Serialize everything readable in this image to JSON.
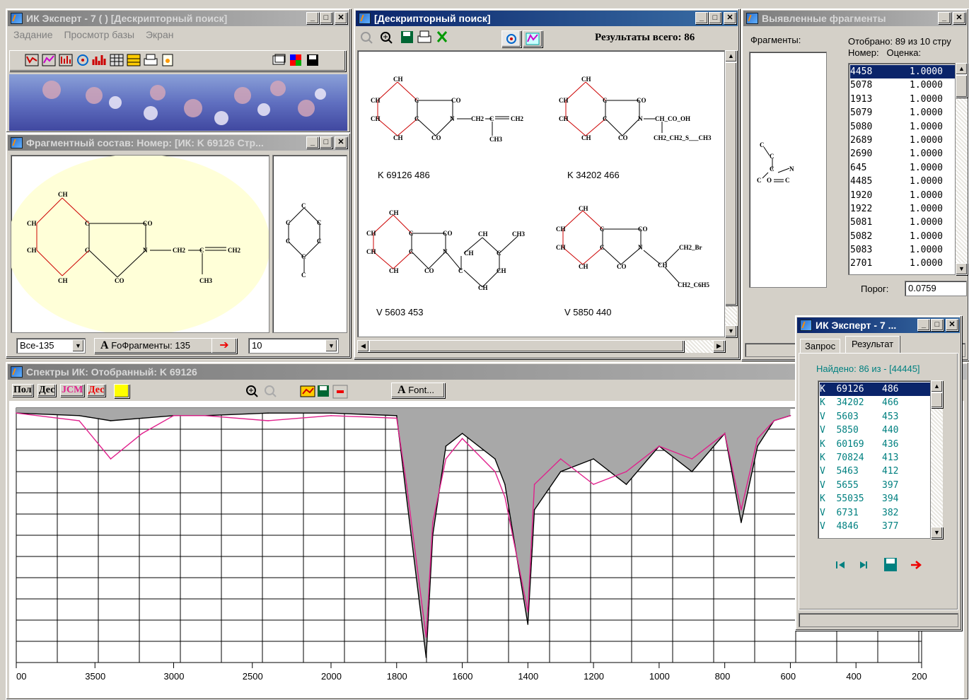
{
  "main_window": {
    "title": "ИК Эксперт - 7 ( ) [Дескрипторный поиск]",
    "menu": [
      "Задание",
      "Просмотр базы",
      "Экран"
    ]
  },
  "fragment_window": {
    "title": "Фрагментный состав: Номер: [ИК:  K 69126 Стр...",
    "combo_all": "Все-135",
    "font_button": "Fo",
    "fragments_label": "Фрагменты: 135",
    "count_combo": "10"
  },
  "descriptor_window": {
    "title": "[Дескрипторный поиск]",
    "results_total": "Результаты всего: 86",
    "structures": [
      {
        "label": "K 69126  486"
      },
      {
        "label": "K 34202  466"
      },
      {
        "label": "V 5603   453"
      },
      {
        "label": "V 5850   440"
      }
    ]
  },
  "fragments_window": {
    "title": "Выявленные фрагменты",
    "fragments_label": "Фрагменты:",
    "selected_info": "Отобрано: 89  из 10 стру",
    "columns": "Номер:   Оценка:",
    "rows": [
      {
        "num": "4458",
        "score": "1.0000"
      },
      {
        "num": "5078",
        "score": "1.0000"
      },
      {
        "num": "1913",
        "score": "1.0000"
      },
      {
        "num": "5079",
        "score": "1.0000"
      },
      {
        "num": "5080",
        "score": "1.0000"
      },
      {
        "num": "2689",
        "score": "1.0000"
      },
      {
        "num": "2690",
        "score": "1.0000"
      },
      {
        "num": "645",
        "score": "1.0000"
      },
      {
        "num": "4485",
        "score": "1.0000"
      },
      {
        "num": "1920",
        "score": "1.0000"
      },
      {
        "num": "1922",
        "score": "1.0000"
      },
      {
        "num": "5081",
        "score": "1.0000"
      },
      {
        "num": "5082",
        "score": "1.0000"
      },
      {
        "num": "5083",
        "score": "1.0000"
      },
      {
        "num": "2701",
        "score": "1.0000"
      }
    ],
    "threshold_label": "Порог:",
    "threshold_value": "0.0759"
  },
  "spectra_window": {
    "title": "Спектры ИК: Отобранный: K   69126",
    "toolbar": [
      "Пол",
      "Дес",
      "JCM",
      "Дес"
    ],
    "font_button": "Font...",
    "series_colors": {
      "selected": "#000000",
      "reference": "#e0208c",
      "fill": "#a8a8a8"
    }
  },
  "chart_data": {
    "type": "line",
    "title": "",
    "xlabel": "",
    "ylabel": "",
    "xlim": [
      4000,
      200
    ],
    "x_ticks": [
      "00",
      "3500",
      "3000",
      "2500",
      "2000",
      "1800",
      "1600",
      "1400",
      "1200",
      "1000",
      "800",
      "600",
      "400",
      "200"
    ],
    "grid": true,
    "series": [
      {
        "name": "",
        "x": [
          4000,
          3600,
          3400,
          3200,
          3000,
          2800,
          2400,
          2000,
          1800,
          1770,
          1710,
          1690,
          1650,
          1600,
          1500,
          1470,
          1400,
          1380,
          1300,
          1200,
          1100,
          1000,
          900,
          800,
          750,
          700,
          650,
          600
        ],
        "y": [
          0.02,
          0.03,
          0.05,
          0.04,
          0.03,
          0.03,
          0.02,
          0.02,
          0.03,
          0.35,
          0.98,
          0.5,
          0.15,
          0.1,
          0.2,
          0.3,
          0.85,
          0.4,
          0.25,
          0.2,
          0.3,
          0.15,
          0.25,
          0.1,
          0.45,
          0.15,
          0.05,
          0.03
        ]
      },
      {
        "name": "",
        "x": [
          4000,
          3600,
          3400,
          3200,
          3000,
          2800,
          2400,
          2000,
          1800,
          1770,
          1710,
          1690,
          1650,
          1600,
          1500,
          1470,
          1400,
          1380,
          1300,
          1200,
          1100,
          1000,
          900,
          800,
          750,
          700,
          650,
          600
        ],
        "y": [
          0.02,
          0.05,
          0.2,
          0.1,
          0.03,
          0.03,
          0.05,
          0.03,
          0.04,
          0.3,
          0.9,
          0.45,
          0.2,
          0.12,
          0.25,
          0.35,
          0.8,
          0.3,
          0.2,
          0.3,
          0.25,
          0.15,
          0.2,
          0.1,
          0.4,
          0.12,
          0.05,
          0.03
        ]
      }
    ]
  },
  "result_window": {
    "title": "ИК Эксперт - 7 ...",
    "tab_query": "Запрос",
    "tab_result": "Результат",
    "found_label": "Найдено: 86 из - [44445]",
    "rows": [
      {
        "code": "K  69126",
        "score": "486"
      },
      {
        "code": "K  34202",
        "score": "466"
      },
      {
        "code": "V  5603",
        "score": "453"
      },
      {
        "code": "V  5850",
        "score": "440"
      },
      {
        "code": "K  60169",
        "score": "436"
      },
      {
        "code": "K  70824",
        "score": "413"
      },
      {
        "code": "V  5463",
        "score": "412"
      },
      {
        "code": "V  5655",
        "score": "397"
      },
      {
        "code": "K  55035",
        "score": "394"
      },
      {
        "code": "V  6731",
        "score": "382"
      },
      {
        "code": "V  4846",
        "score": "377"
      }
    ]
  }
}
